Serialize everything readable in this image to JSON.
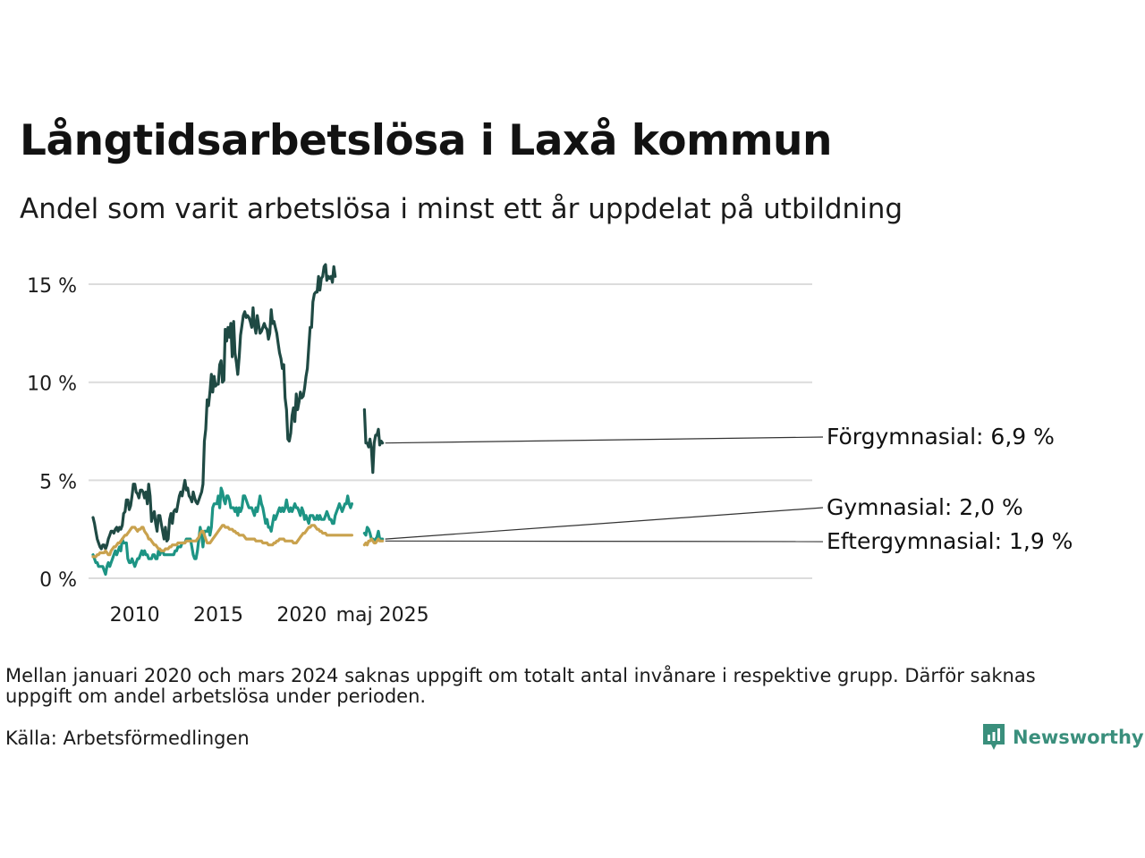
{
  "header": {
    "title": "Långtidsarbetslösa i Laxå kommun",
    "subtitle": "Andel som varit arbetslösa i minst ett år uppdelat på utbildning"
  },
  "footer": {
    "note": "Mellan januari 2020 och mars 2024 saknas uppgift om totalt antal invånare i respektive grupp. Därför saknas uppgift om andel arbetslösa under perioden.",
    "source": "Källa: Arbetsförmedlingen",
    "brand": "Newsworthy",
    "brand_icon": "bar-chart-icon",
    "brand_color": "#3a8f7c"
  },
  "chart_data": {
    "type": "line",
    "title": "Långtidsarbetslösa i Laxå kommun",
    "subtitle": "Andel som varit arbetslösa i minst ett år uppdelat på utbildning",
    "xlabel": "",
    "ylabel": "",
    "ylim": [
      0,
      16
    ],
    "y_ticks": [
      0,
      5,
      10,
      15
    ],
    "y_tick_labels": [
      "0 %",
      "5 %",
      "10 %",
      "15 %"
    ],
    "x_ticks": [
      "2010",
      "2015",
      "2020",
      "maj 2025"
    ],
    "grid": "horizontal",
    "legend": "direct labels at right end",
    "series": [
      {
        "name": "Förgymnasial",
        "end_label": "Förgymnasial: 6,9 %",
        "color": "#1f4a44",
        "segments": [
          {
            "start": "2008-01",
            "values": [
              3.1,
              2.8,
              2.4,
              2.0,
              1.8,
              1.6,
              1.5,
              1.7,
              1.7,
              1.5,
              1.7,
              2.0,
              2.2,
              2.4,
              2.4,
              2.3,
              2.5,
              2.6,
              2.4,
              2.6,
              2.5,
              2.7,
              3.3,
              3.4,
              4.0,
              4.0,
              3.5,
              3.7,
              4.2,
              4.8,
              4.8,
              4.4,
              4.3,
              4.1,
              4.5,
              4.5,
              4.4,
              4.1,
              4.4,
              3.8,
              4.8,
              4.2,
              2.9,
              3.2,
              3.4,
              2.8,
              2.4,
              3.2,
              3.2,
              2.8,
              2.4,
              2.0,
              2.6,
              1.9,
              2.0,
              3.0,
              3.3,
              2.8,
              3.4,
              3.5,
              3.4,
              3.8,
              4.2,
              4.4,
              4.2,
              4.6,
              5.0,
              4.5,
              4.6,
              4.2,
              4.1,
              3.9,
              4.4,
              4.1,
              3.9,
              3.8,
              4.0,
              4.2,
              4.4,
              4.8,
              7.0,
              7.6,
              9.1,
              8.8,
              9.5,
              10.4,
              9.5,
              10.3,
              9.8,
              9.9,
              9.9,
              10.9,
              11.1,
              10.0,
              10.1,
              12.7,
              12.1,
              12.8,
              12.3,
              13.0,
              11.3,
              13.1,
              11.5,
              11.0,
              10.4,
              11.3,
              12.4,
              12.9,
              13.4,
              13.6,
              13.3,
              13.4,
              13.3,
              13.1,
              12.8,
              13.8,
              12.9,
              12.5,
              13.4,
              12.9,
              12.5,
              12.6,
              12.8,
              13.0,
              12.8,
              12.7,
              12.2,
              12.5,
              13.7,
              13.0,
              13.1,
              12.8,
              12.5,
              12.0,
              11.5,
              11.2,
              10.7,
              10.9,
              9.2,
              8.6,
              7.1,
              7.0,
              7.4,
              8.3,
              8.7,
              8.0,
              9.4,
              8.6,
              9.0,
              9.5,
              9.2,
              9.3,
              9.7,
              10.3,
              10.7,
              11.8,
              12.8,
              12.8,
              14.1,
              14.5,
              14.6,
              14.6,
              15.4,
              14.7,
              15.3,
              15.4,
              15.9,
              16.0,
              15.2,
              15.4,
              15.3,
              15.4,
              15.1,
              15.9,
              15.4
            ]
          },
          {
            "start": "2024-04",
            "values": [
              8.6,
              6.9,
              6.9,
              6.7,
              7.1,
              6.6,
              5.4,
              6.9,
              7.3,
              7.3,
              7.6,
              6.8,
              7.0,
              6.9
            ]
          }
        ]
      },
      {
        "name": "Gymnasial",
        "end_label": "Gymnasial: 2,0 %",
        "color": "#1d9484",
        "segments": [
          {
            "start": "2008-01",
            "values": [
              1.2,
              1.0,
              0.8,
              0.8,
              0.6,
              0.6,
              0.6,
              0.6,
              0.4,
              0.2,
              0.6,
              0.8,
              0.6,
              0.8,
              1.0,
              1.2,
              1.4,
              1.2,
              1.4,
              1.6,
              1.4,
              2.0,
              1.8,
              1.8,
              1.8,
              1.0,
              0.8,
              0.8,
              1.0,
              0.8,
              0.6,
              0.8,
              1.0,
              1.0,
              1.2,
              1.4,
              1.2,
              1.4,
              1.2,
              1.2,
              1.0,
              1.0,
              1.0,
              1.2,
              1.2,
              1.0,
              1.0,
              1.4,
              1.2,
              1.4,
              1.4,
              1.2,
              1.2,
              1.2,
              1.2,
              1.2,
              1.2,
              1.2,
              1.2,
              1.4,
              1.4,
              1.6,
              1.6,
              1.6,
              1.8,
              1.8,
              1.8,
              2.0,
              2.0,
              2.0,
              2.0,
              1.6,
              1.2,
              1.0,
              1.0,
              1.4,
              2.0,
              2.6,
              2.2,
              1.6,
              2.4,
              2.4,
              2.4,
              2.6,
              2.2,
              2.6,
              3.6,
              3.8,
              3.8,
              3.8,
              4.2,
              3.6,
              4.6,
              4.4,
              4.0,
              3.8,
              4.2,
              4.2,
              4.0,
              3.6,
              3.6,
              3.6,
              3.4,
              3.6,
              3.2,
              3.6,
              3.4,
              3.6,
              4.2,
              4.2,
              4.0,
              3.8,
              3.6,
              3.6,
              3.6,
              3.4,
              3.2,
              3.6,
              3.4,
              3.8,
              4.2,
              3.8,
              3.6,
              3.2,
              2.8,
              3.0,
              2.6,
              2.6,
              2.4,
              2.8,
              3.2,
              3.0,
              3.2,
              3.4,
              3.6,
              3.4,
              3.6,
              3.4,
              3.6,
              4.0,
              3.6,
              3.4,
              3.6,
              3.4,
              3.6,
              3.8,
              3.6,
              3.6,
              3.4,
              3.2,
              3.6,
              3.4,
              3.0,
              3.2,
              3.0,
              2.8,
              3.2,
              3.2,
              3.2,
              3.0,
              3.0,
              3.2,
              3.0,
              3.2,
              3.0,
              3.0,
              3.0,
              3.2,
              3.4,
              3.2,
              3.0,
              3.0,
              2.8,
              2.8,
              3.2,
              3.4,
              3.6,
              3.8,
              3.6,
              3.4,
              3.6,
              3.8,
              3.8,
              4.2,
              3.8,
              3.6,
              3.8
            ]
          },
          {
            "start": "2024-04",
            "values": [
              2.3,
              2.2,
              2.6,
              2.5,
              2.3,
              2.0,
              2.0,
              1.9,
              2.0,
              2.1,
              2.4,
              2.0,
              2.0,
              2.0
            ]
          }
        ]
      },
      {
        "name": "Eftergymnasial",
        "end_label": "Eftergymnasial: 1,9 %",
        "color": "#c9a24e",
        "segments": [
          {
            "start": "2008-01",
            "values": [
              1.1,
              1.1,
              1.1,
              1.2,
              1.2,
              1.3,
              1.3,
              1.3,
              1.3,
              1.4,
              1.3,
              1.2,
              1.2,
              1.4,
              1.5,
              1.6,
              1.6,
              1.7,
              1.8,
              1.8,
              1.9,
              2.0,
              2.1,
              2.2,
              2.2,
              2.3,
              2.4,
              2.5,
              2.6,
              2.6,
              2.6,
              2.5,
              2.4,
              2.5,
              2.5,
              2.6,
              2.6,
              2.4,
              2.3,
              2.2,
              2.0,
              2.0,
              1.9,
              1.8,
              1.7,
              1.7,
              1.6,
              1.5,
              1.5,
              1.4,
              1.4,
              1.4,
              1.5,
              1.5,
              1.5,
              1.6,
              1.6,
              1.7,
              1.7,
              1.7,
              1.7,
              1.8,
              1.8,
              1.8,
              1.8,
              1.8,
              1.8,
              1.9,
              1.9,
              1.9,
              1.9,
              1.9,
              1.9,
              1.9,
              1.9,
              2.0,
              2.1,
              2.3,
              2.4,
              2.4,
              2.2,
              2.0,
              1.8,
              1.8,
              1.8,
              1.9,
              2.0,
              2.1,
              2.2,
              2.3,
              2.4,
              2.5,
              2.6,
              2.7,
              2.7,
              2.6,
              2.6,
              2.6,
              2.5,
              2.5,
              2.5,
              2.4,
              2.4,
              2.3,
              2.3,
              2.2,
              2.2,
              2.2,
              2.2,
              2.1,
              2.0,
              2.0,
              2.0,
              2.0,
              2.0,
              2.0,
              2.0,
              1.9,
              1.9,
              1.9,
              1.9,
              1.9,
              1.8,
              1.8,
              1.8,
              1.8,
              1.7,
              1.7,
              1.7,
              1.7,
              1.8,
              1.8,
              1.9,
              1.9,
              2.0,
              2.0,
              2.0,
              2.0,
              1.9,
              1.9,
              1.9,
              1.9,
              1.9,
              1.9,
              1.8,
              1.8,
              1.8,
              1.9,
              2.0,
              2.1,
              2.2,
              2.3,
              2.3,
              2.4,
              2.5,
              2.6,
              2.6,
              2.7,
              2.7,
              2.7,
              2.6,
              2.5,
              2.5,
              2.4,
              2.4,
              2.3,
              2.3,
              2.3,
              2.2,
              2.2,
              2.2,
              2.2,
              2.2,
              2.2,
              2.2,
              2.2,
              2.2,
              2.2,
              2.2,
              2.2,
              2.2,
              2.2,
              2.2,
              2.2,
              2.2,
              2.2,
              2.2
            ]
          },
          {
            "start": "2024-04",
            "values": [
              1.7,
              1.8,
              1.7,
              1.9,
              1.9,
              2.0,
              1.9,
              1.8,
              1.8,
              1.9,
              2.0,
              1.9,
              1.9,
              1.9
            ]
          }
        ]
      }
    ]
  }
}
